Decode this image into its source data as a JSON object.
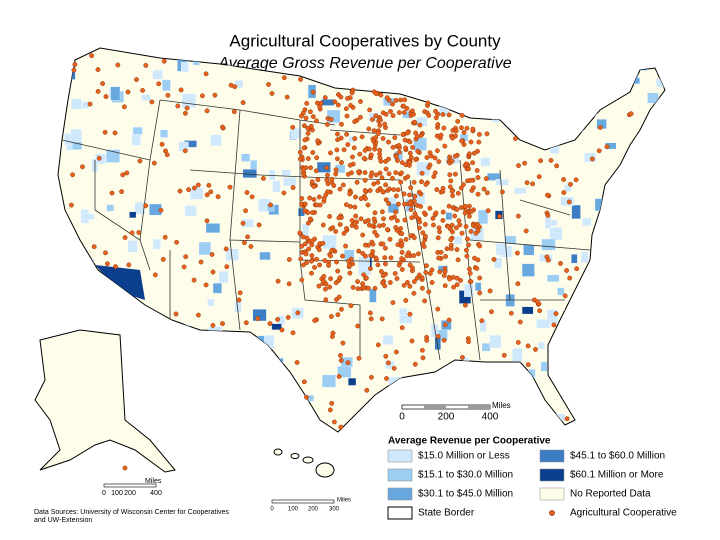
{
  "header": {
    "title": "Agricultural Cooperatives by County",
    "subtitle": "Average Gross Revenue per Cooperative"
  },
  "legend": {
    "title": "Average Revenue per Cooperative",
    "items": [
      {
        "label": "$15.0 Million or Less",
        "color": "#cfe8fb"
      },
      {
        "label": "$15.1 to $30.0 Million",
        "color": "#9ccdf3"
      },
      {
        "label": "$30.1 to $45.0 Million",
        "color": "#67a9de"
      },
      {
        "label": "$45.1 to $60.0 Million",
        "color": "#3b7cc2"
      },
      {
        "label": "$60.1 Million or More",
        "color": "#0b3f8e"
      },
      {
        "label": "No Reported Data",
        "color": "#fdfdea"
      },
      {
        "label": "State Border",
        "color": "#ffffff"
      },
      {
        "label": "Agricultural Cooperative",
        "color": "#e8621e"
      }
    ]
  },
  "scale_main": {
    "unit": "Miles",
    "ticks": [
      "0",
      "200",
      "400"
    ]
  },
  "scale_alaska": {
    "unit": "Miles",
    "ticks": [
      "0",
      "100",
      "200",
      "400"
    ]
  },
  "scale_hawaii": {
    "unit": "Miles",
    "ticks": [
      "0",
      "100",
      "200",
      "300"
    ]
  },
  "source": [
    "Data Sources: University of Wisconsin Center for Cooperatives",
    "and UW-Extension"
  ]
}
